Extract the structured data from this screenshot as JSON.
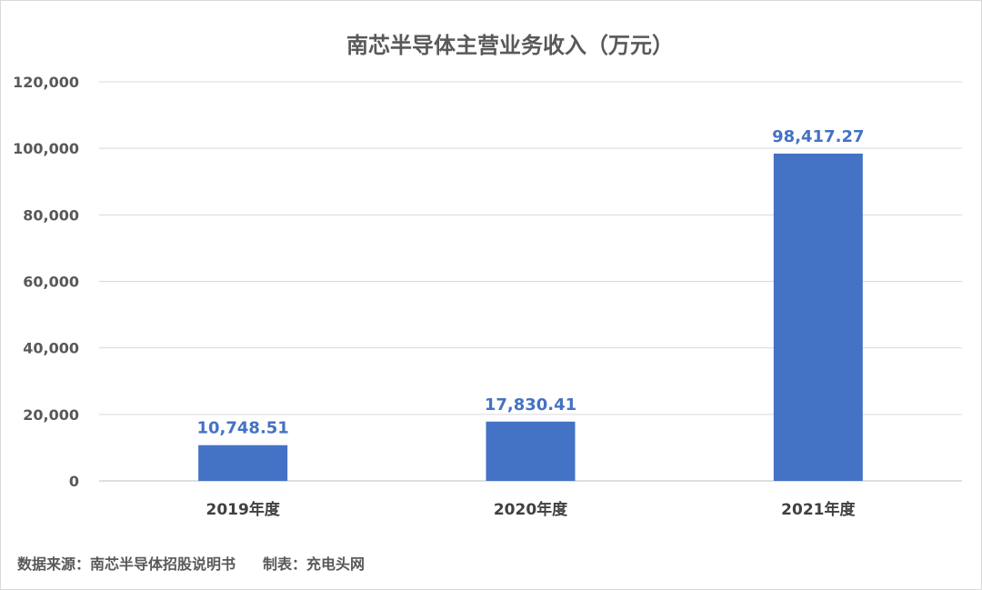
{
  "chart_data": {
    "type": "bar",
    "title": "南芯半导体主营业务收入（万元）",
    "categories": [
      "2019年度",
      "2020年度",
      "2021年度"
    ],
    "values": [
      10748.51,
      17830.41,
      98417.27
    ],
    "data_labels": [
      "10,748.51",
      "17,830.41",
      "98,417.27"
    ],
    "ylim": [
      0,
      120000
    ],
    "yticks": [
      0,
      20000,
      40000,
      60000,
      80000,
      100000,
      120000
    ],
    "ytick_labels": [
      "0",
      "20,000",
      "40,000",
      "60,000",
      "80,000",
      "100,000",
      "120,000"
    ],
    "xlabel": "",
    "ylabel": "",
    "grid": true,
    "legend": "none"
  },
  "footer": {
    "source": "数据来源：南芯半导体招股说明书",
    "maker": "制表：充电头网"
  },
  "colors": {
    "bar": "#4472c4",
    "data_label": "#4472c4"
  }
}
